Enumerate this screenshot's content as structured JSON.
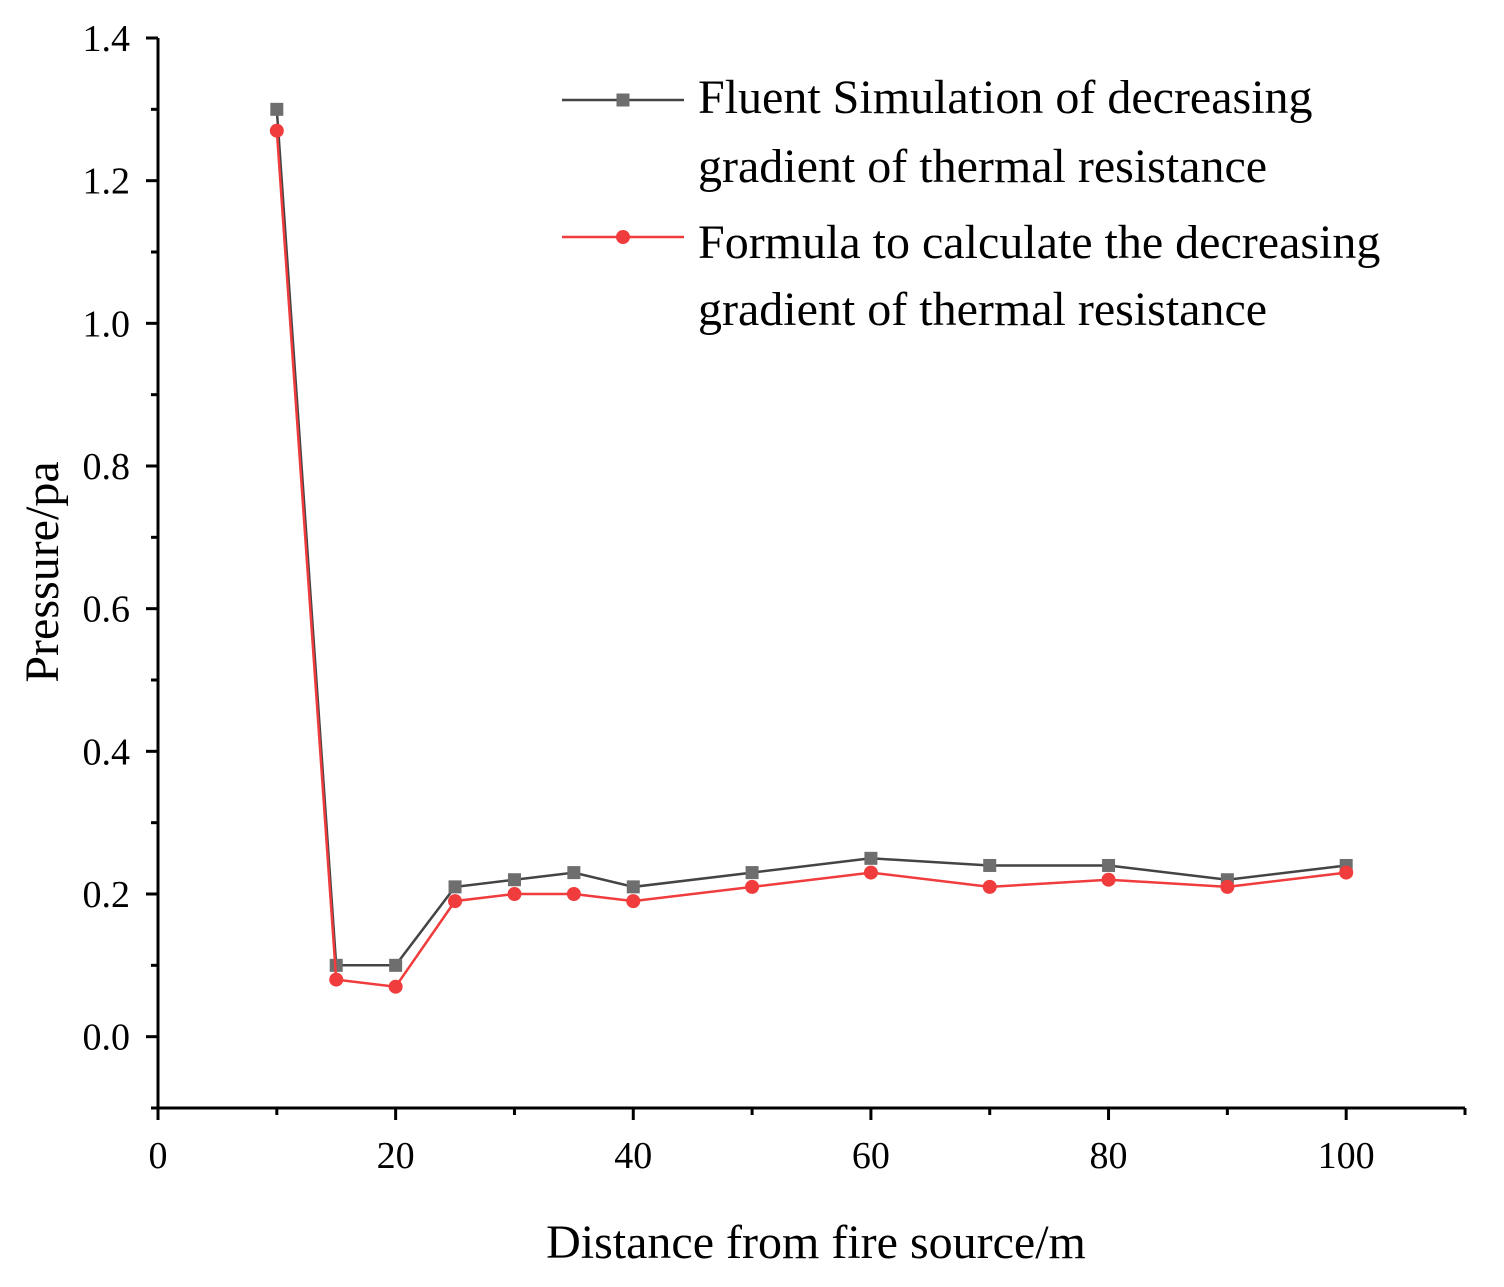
{
  "chart_data": {
    "type": "line",
    "title": "",
    "xlabel": "Distance from fire source/m",
    "ylabel": "Pressure/pa",
    "xlim": [
      0,
      110
    ],
    "ylim": [
      -0.1,
      1.4
    ],
    "xticks": [
      0,
      20,
      40,
      60,
      80,
      100
    ],
    "xtick_labels": [
      "0",
      "20",
      "40",
      "60",
      "80",
      "100"
    ],
    "yticks": [
      0.0,
      0.2,
      0.4,
      0.6,
      0.8,
      1.0,
      1.2,
      1.4
    ],
    "ytick_labels": [
      "0.0",
      "0.2",
      "0.4",
      "0.6",
      "0.8",
      "1.0",
      "1.2",
      "1.4"
    ],
    "grid": false,
    "legend_position": "top-right",
    "x": [
      10,
      15,
      20,
      25,
      30,
      35,
      40,
      50,
      60,
      70,
      80,
      90,
      100
    ],
    "series": [
      {
        "name_lines": [
          "Fluent Simulation of decreasing",
          "gradient of thermal resistance"
        ],
        "color": "#444444",
        "marker_color": "#6e6e6e",
        "marker": "square",
        "values": [
          1.3,
          0.1,
          0.1,
          0.21,
          0.22,
          0.23,
          0.21,
          0.23,
          0.25,
          0.24,
          0.24,
          0.22,
          0.24
        ]
      },
      {
        "name_lines": [
          "Formula to calculate the decreasing",
          "gradient of thermal resistance"
        ],
        "color": "#f03c3c",
        "marker_color": "#f03c3c",
        "marker": "circle",
        "values": [
          1.27,
          0.08,
          0.07,
          0.19,
          0.2,
          0.2,
          0.19,
          0.21,
          0.23,
          0.21,
          0.22,
          0.21,
          0.23
        ]
      }
    ]
  }
}
